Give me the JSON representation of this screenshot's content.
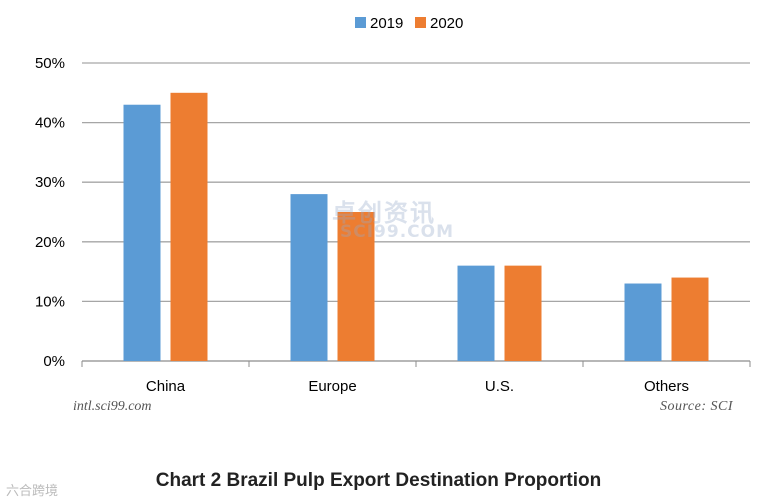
{
  "chart_data": {
    "type": "bar",
    "title": "Chart 2 Brazil Pulp Export Destination Proportion",
    "categories": [
      "China",
      "Europe",
      "U.S.",
      "Others"
    ],
    "series": [
      {
        "name": "2019",
        "values": [
          43,
          28,
          16,
          13
        ],
        "color": "#5b9bd5"
      },
      {
        "name": "2020",
        "values": [
          45,
          25,
          16,
          14
        ],
        "color": "#ed7d31"
      }
    ],
    "ylim": [
      0,
      50
    ],
    "yticks": [
      "0%",
      "10%",
      "20%",
      "30%",
      "40%",
      "50%"
    ],
    "grid": true,
    "legend_position": "top-center"
  },
  "notes": {
    "website": "intl.sci99.com",
    "source": "Source: SCI",
    "watermark_main": "卓创资讯",
    "watermark_sub": "SCI99.COM",
    "corner_mark": "六合跨境"
  }
}
